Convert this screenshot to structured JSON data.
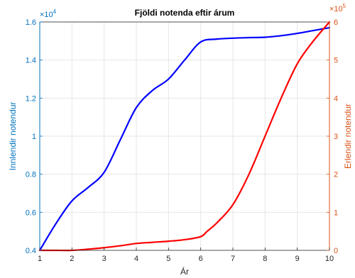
{
  "chart_data": {
    "type": "line",
    "title": "Fjöldi notenda eftir árum",
    "xlabel": "Ár",
    "ylabel_left": "Innlendir notendur",
    "ylabel_right": "Erlendir notendur",
    "left_multiplier": "×10",
    "left_exponent": "4",
    "right_multiplier": "×10",
    "right_exponent": "5",
    "xlim": [
      1,
      10
    ],
    "ylim_left": [
      0.4,
      1.6
    ],
    "ylim_right": [
      0,
      6
    ],
    "x_ticks": [
      "1",
      "2",
      "3",
      "4",
      "5",
      "6",
      "7",
      "8",
      "9",
      "10"
    ],
    "y_ticks_left": [
      "0.4",
      "0.6",
      "0.8",
      "1",
      "1.2",
      "1.4",
      "1.6"
    ],
    "y_ticks_right": [
      "0",
      "1",
      "2",
      "3",
      "4",
      "5",
      "6"
    ],
    "grid": true,
    "colors": {
      "left_axis": "#0072BD",
      "right_axis": "#D95319",
      "series_left": "#0000FF",
      "series_right": "#FF0000"
    },
    "series": [
      {
        "axis": "left",
        "color": "#0000FF",
        "x": [
          1,
          1.5,
          2,
          2.5,
          3,
          3.5,
          4,
          4.5,
          5,
          5.5,
          6,
          6.5,
          7,
          7.5,
          8,
          8.5,
          9,
          9.5,
          10
        ],
        "y": [
          0.4,
          0.54,
          0.66,
          0.73,
          0.81,
          0.98,
          1.15,
          1.24,
          1.3,
          1.4,
          1.495,
          1.51,
          1.515,
          1.518,
          1.52,
          1.528,
          1.54,
          1.555,
          1.57
        ]
      },
      {
        "axis": "right",
        "color": "#FF0000",
        "x": [
          1,
          1.5,
          2,
          2.5,
          3,
          3.5,
          4,
          4.5,
          5,
          5.5,
          6,
          6.2,
          6.5,
          7,
          7.5,
          8,
          8.5,
          9,
          9.5,
          10
        ],
        "y": [
          0,
          0,
          0,
          0.03,
          0.07,
          0.12,
          0.18,
          0.21,
          0.24,
          0.28,
          0.36,
          0.5,
          0.72,
          1.2,
          2.0,
          3.0,
          4.0,
          4.9,
          5.5,
          6.0
        ]
      }
    ]
  }
}
